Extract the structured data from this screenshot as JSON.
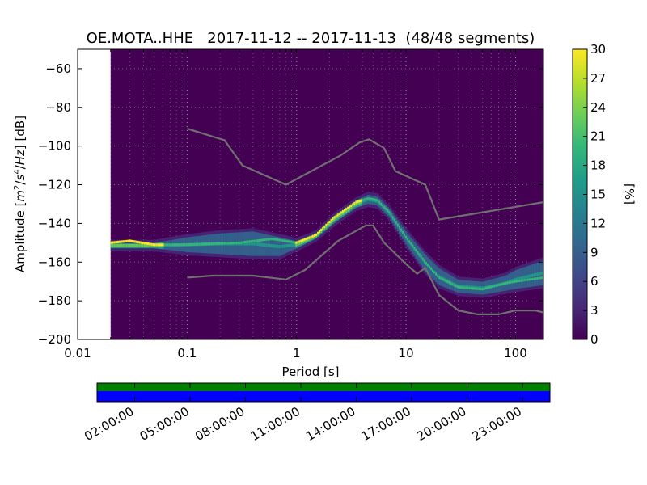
{
  "chart_data": {
    "type": "heatmap",
    "title": "OE.MOTA..HHE   2017-11-12 -- 2017-11-13  (48/48 segments)",
    "xlabel": "Period [s]",
    "ylabel_parts": [
      "Amplitude [",
      "m",
      "2",
      "/",
      "s",
      "4",
      "/",
      "Hz",
      "] [dB]"
    ],
    "x_scale": "log",
    "xlim": [
      0.01,
      180
    ],
    "ylim": [
      -200,
      -50
    ],
    "x_ticks": [
      {
        "value": 0.01,
        "label": "0.01"
      },
      {
        "value": 0.1,
        "label": "0.1"
      },
      {
        "value": 1,
        "label": "1"
      },
      {
        "value": 10,
        "label": "10"
      },
      {
        "value": 100,
        "label": "100"
      }
    ],
    "y_ticks": [
      {
        "value": -60,
        "label": "−60"
      },
      {
        "value": -80,
        "label": "−80"
      },
      {
        "value": -100,
        "label": "−100"
      },
      {
        "value": -120,
        "label": "−120"
      },
      {
        "value": -140,
        "label": "−140"
      },
      {
        "value": -160,
        "label": "−160"
      },
      {
        "value": -180,
        "label": "−180"
      },
      {
        "value": -200,
        "label": "−200"
      }
    ],
    "data_start_period": 0.02,
    "background_color": "#440154",
    "noise_models": [
      {
        "name": "high-noise-model",
        "points": [
          [
            0.1,
            -91
          ],
          [
            0.22,
            -97
          ],
          [
            0.32,
            -110
          ],
          [
            0.8,
            -120
          ],
          [
            2.5,
            -105
          ],
          [
            3.8,
            -98
          ],
          [
            4.6,
            -96.5
          ],
          [
            6.3,
            -101
          ],
          [
            8,
            -113
          ],
          [
            15,
            -120
          ],
          [
            20,
            -138
          ],
          [
            180,
            -129
          ]
        ]
      },
      {
        "name": "low-noise-model",
        "points": [
          [
            0.1,
            -168
          ],
          [
            0.17,
            -167
          ],
          [
            0.4,
            -167
          ],
          [
            0.8,
            -169
          ],
          [
            1.2,
            -164
          ],
          [
            2.4,
            -149
          ],
          [
            4.3,
            -141
          ],
          [
            5,
            -141
          ],
          [
            6.3,
            -150
          ],
          [
            10,
            -161
          ],
          [
            12.6,
            -166
          ],
          [
            15,
            -163
          ],
          [
            20,
            -177
          ],
          [
            30,
            -185
          ],
          [
            45,
            -187
          ],
          [
            70,
            -187
          ],
          [
            100,
            -185
          ],
          [
            150,
            -185
          ],
          [
            180,
            -186
          ]
        ]
      }
    ],
    "mode_curve": {
      "name": "dominant-psd",
      "points": [
        [
          0.02,
          -150
        ],
        [
          0.03,
          -149
        ],
        [
          0.05,
          -151
        ],
        [
          0.1,
          -151
        ],
        [
          0.3,
          -150
        ],
        [
          0.6,
          -148
        ],
        [
          1,
          -150
        ],
        [
          1.5,
          -146
        ],
        [
          2.2,
          -137
        ],
        [
          3.5,
          -129
        ],
        [
          4.5,
          -127
        ],
        [
          5.5,
          -128
        ],
        [
          7,
          -134
        ],
        [
          10,
          -147
        ],
        [
          15,
          -160
        ],
        [
          20,
          -168
        ],
        [
          30,
          -173
        ],
        [
          50,
          -174
        ],
        [
          80,
          -171
        ],
        [
          100,
          -170
        ],
        [
          180,
          -168
        ]
      ]
    },
    "band_curves": [
      {
        "name": "upper-band",
        "points": [
          [
            0.05,
            -151
          ],
          [
            0.1,
            -148
          ],
          [
            0.2,
            -146
          ],
          [
            0.4,
            -145
          ],
          [
            0.7,
            -148
          ],
          [
            1,
            -150
          ],
          [
            1.5,
            -146
          ],
          [
            2.2,
            -137
          ],
          [
            3.5,
            -129
          ],
          [
            4.5,
            -126
          ],
          [
            5.5,
            -127
          ],
          [
            7,
            -133
          ],
          [
            10,
            -145
          ],
          [
            15,
            -157
          ],
          [
            20,
            -164
          ],
          [
            30,
            -170
          ],
          [
            50,
            -171
          ],
          [
            80,
            -168
          ],
          [
            100,
            -165
          ],
          [
            180,
            -160
          ]
        ]
      },
      {
        "name": "lower-band",
        "points": [
          [
            0.05,
            -152
          ],
          [
            0.1,
            -154
          ],
          [
            0.2,
            -155
          ],
          [
            0.4,
            -156
          ],
          [
            0.7,
            -156
          ],
          [
            1,
            -152
          ],
          [
            1.5,
            -147
          ],
          [
            2.2,
            -139
          ],
          [
            3.5,
            -131
          ],
          [
            4.5,
            -129
          ],
          [
            5.5,
            -130
          ],
          [
            7,
            -136
          ],
          [
            10,
            -150
          ],
          [
            15,
            -164
          ],
          [
            20,
            -171
          ],
          [
            30,
            -175
          ],
          [
            50,
            -176
          ],
          [
            80,
            -174
          ],
          [
            100,
            -173
          ],
          [
            180,
            -171
          ]
        ]
      }
    ],
    "colorbar": {
      "label": "[%]",
      "min": 0,
      "max": 30,
      "ticks": [
        "0",
        "3",
        "6",
        "9",
        "12",
        "15",
        "18",
        "21",
        "24",
        "27",
        "30"
      ],
      "colormap": [
        "#440154",
        "#482878",
        "#3e4a89",
        "#31688e",
        "#26828e",
        "#1f9e89",
        "#35b779",
        "#6ece58",
        "#b5de2b",
        "#fde725"
      ]
    },
    "coverage": {
      "tracks": [
        {
          "name": "data-coverage",
          "color": "#008000"
        },
        {
          "name": "segment-coverage",
          "color": "#0000ff"
        }
      ],
      "time_labels": [
        "02:00:00",
        "05:00:00",
        "08:00:00",
        "11:00:00",
        "14:00:00",
        "17:00:00",
        "20:00:00",
        "23:00:00"
      ]
    }
  }
}
